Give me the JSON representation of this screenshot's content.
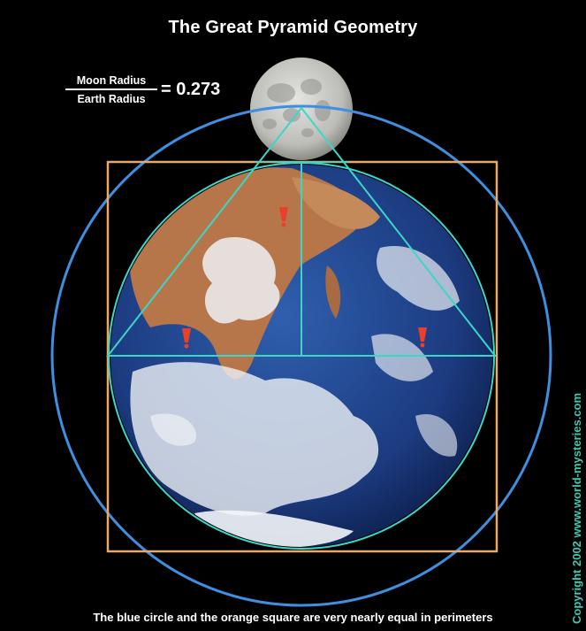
{
  "title": "The Great Pyramid Geometry",
  "ratio": {
    "numerator": "Moon Radius",
    "denominator": "Earth Radius",
    "equals": "= 0.273"
  },
  "caption": "The blue circle and the orange square are very nearly equal in perimeters",
  "copyright": "Copyright 2002 www.world-mysteries.com",
  "colors": {
    "background": "#000000",
    "blue_circle": "#3f8fe0",
    "orange_square": "#f0a860",
    "pyramid_lines": "#3cd6c8",
    "ocean": "#1d3f86",
    "land": "#b7764a",
    "cloud": "#f2f4f7",
    "moon": "#c9c9c6",
    "marker": "#e8402a",
    "copyright_text": "#3cc9b0"
  },
  "icons": [
    "earth-icon",
    "moon-icon",
    "marker-icon"
  ]
}
